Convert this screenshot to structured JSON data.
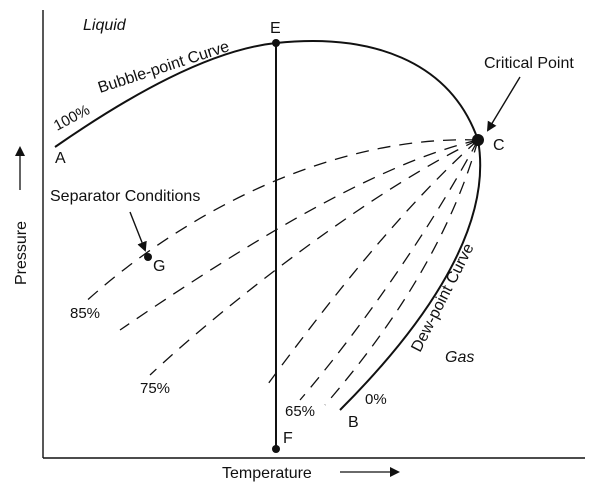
{
  "labels": {
    "liquid": "Liquid",
    "gas": "Gas",
    "bubble_point_curve": "Bubble-point Curve",
    "dew_point_curve": "Dew-point Curve",
    "critical_point": "Critical Point",
    "separator_conditions": "Separator Conditions",
    "pressure_axis": "Pressure",
    "temperature_axis": "Temperature"
  },
  "points": {
    "A": "A",
    "B": "B",
    "C": "C",
    "E": "E",
    "F": "F",
    "G": "G"
  },
  "quality_lines": {
    "q100": "100%",
    "q85": "85%",
    "q75": "75%",
    "q65": "65%",
    "q0": "0%"
  }
}
